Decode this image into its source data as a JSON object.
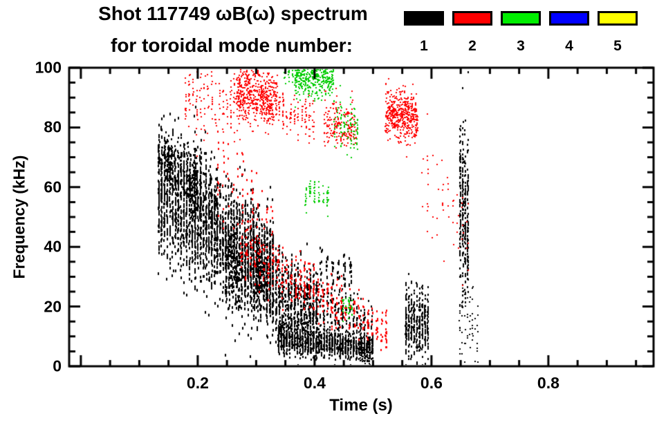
{
  "header": {
    "line1": "Shot 117749 ωB(ω) spectrum",
    "line2": "for toroidal mode number:"
  },
  "legend": {
    "entries": [
      {
        "label": "1",
        "color": "#000000"
      },
      {
        "label": "2",
        "color": "#ff0000"
      },
      {
        "label": "3",
        "color": "#00ee00"
      },
      {
        "label": "4",
        "color": "#0000ff"
      },
      {
        "label": "5",
        "color": "#ffff00"
      }
    ]
  },
  "chart_data": {
    "type": "scatter",
    "title": "Shot 117749 ωB(ω) spectrum for toroidal mode number: 1-5",
    "xlabel": "Time (s)",
    "ylabel": "Frequency (kHz)",
    "xlim": [
      -0.02,
      0.98
    ],
    "ylim": [
      0,
      100
    ],
    "grid": false,
    "legend_position": "top-right",
    "x_major_ticks": [
      0,
      0.2,
      0.4,
      0.6,
      0.8
    ],
    "x_tick_label_values": [
      0.2,
      0.4,
      0.6,
      0.8
    ],
    "x_tick_labels": [
      "0.2",
      "0.4",
      "0.6",
      "0.8"
    ],
    "x_minor_step": 0.05,
    "y_major_ticks": [
      0,
      20,
      40,
      60,
      80,
      100
    ],
    "y_tick_labels": [
      "0",
      "20",
      "40",
      "60",
      "80",
      "100"
    ],
    "y_minor_step": 5,
    "series": [
      {
        "name": "toroidal mode n=1",
        "color": "#000000",
        "clusters": [
          {
            "n": 2300,
            "t": [
              0.13,
              0.33
            ],
            "f": [
              58,
              32
            ],
            "spread": [
              11,
              8
            ],
            "stripes": 42,
            "size": [
              2,
              4
            ]
          },
          {
            "n": 330,
            "t": [
              0.13,
              0.2
            ],
            "f": [
              71,
              62
            ],
            "spread": [
              4,
              5
            ],
            "stripes": 13,
            "size": [
              2,
              3
            ]
          },
          {
            "n": 130,
            "t": [
              0.19,
              0.235
            ],
            "f": [
              64,
              50
            ],
            "spread": [
              9,
              9
            ],
            "stripes": 5,
            "size": [
              2,
              4
            ]
          },
          {
            "n": 850,
            "t": [
              0.245,
              0.405
            ],
            "f": [
              33,
              19
            ],
            "spread": [
              8,
              7
            ],
            "stripes": 30,
            "size": [
              2,
              4
            ]
          },
          {
            "n": 480,
            "t": [
              0.33,
              0.5
            ],
            "f": [
              21,
              12
            ],
            "spread": [
              7,
              5
            ],
            "stripes": 27,
            "size": [
              2,
              3
            ]
          },
          {
            "n": 1150,
            "t": [
              0.335,
              0.5
            ],
            "f": [
              9,
              6
            ],
            "spread": [
              2.5,
              1.6
            ],
            "stripes": 36,
            "size": [
              2,
              3
            ]
          },
          {
            "n": 70,
            "t": [
              0.405,
              0.465
            ],
            "f": [
              33,
              30
            ],
            "spread": [
              4,
              4
            ],
            "stripes": 6,
            "size": [
              2,
              4
            ]
          },
          {
            "n": 60,
            "t": [
              0.475,
              0.495
            ],
            "f": [
              4,
              2
            ],
            "spread": [
              1.5,
              1
            ],
            "stripes": 5,
            "size": [
              2,
              2
            ]
          },
          {
            "n": 430,
            "t": [
              0.553,
              0.595
            ],
            "f": [
              14,
              14
            ],
            "spread": [
              6,
              6
            ],
            "stripes": 9,
            "size": [
              2,
              3
            ]
          },
          {
            "n": 330,
            "t": [
              0.646,
              0.663
            ],
            "f": [
              54,
              52
            ],
            "spread": [
              14,
              14
            ],
            "stripes": 4,
            "size": [
              2,
              3
            ]
          },
          {
            "n": 60,
            "t": [
              0.645,
              0.68
            ],
            "f": [
              16,
              10
            ],
            "spread": [
              7,
              7
            ],
            "stripes": 8,
            "size": [
              2,
              2
            ]
          }
        ]
      },
      {
        "name": "toroidal mode n=2",
        "color": "#ff0000",
        "clusters": [
          {
            "n": 150,
            "t": [
              0.175,
              0.265
            ],
            "f": [
              90,
              88
            ],
            "spread": [
              5,
              6
            ],
            "stripes": 14,
            "size": [
              2,
              2
            ]
          },
          {
            "n": 520,
            "t": [
              0.265,
              0.335
            ],
            "f": [
              92,
              89
            ],
            "spread": [
              5,
              5
            ],
            "stripes": 0,
            "size": [
              2,
              2
            ]
          },
          {
            "n": 110,
            "t": [
              0.335,
              0.4
            ],
            "f": [
              86,
              82
            ],
            "spread": [
              4,
              4
            ],
            "stripes": 10,
            "size": [
              2,
              2
            ]
          },
          {
            "n": 190,
            "t": [
              0.415,
              0.47
            ],
            "f": [
              82,
              80
            ],
            "spread": [
              4,
              4
            ],
            "stripes": 0,
            "size": [
              2,
              2
            ]
          },
          {
            "n": 440,
            "t": [
              0.52,
              0.575
            ],
            "f": [
              85,
              83
            ],
            "spread": [
              4,
              4
            ],
            "stripes": 0,
            "size": [
              2,
              2
            ]
          },
          {
            "n": 430,
            "t": [
              0.27,
              0.525
            ],
            "f": [
              40,
              11
            ],
            "spread": [
              5,
              3
            ],
            "stripes": 33,
            "size": [
              2,
              3
            ]
          },
          {
            "n": 90,
            "t": [
              0.23,
              0.33
            ],
            "f": [
              62,
              48
            ],
            "spread": [
              8,
              8
            ],
            "stripes": 12,
            "size": [
              2,
              3
            ]
          },
          {
            "n": 55,
            "t": [
              0.58,
              0.665
            ],
            "f": [
              60,
              45
            ],
            "spread": [
              12,
              10
            ],
            "stripes": 10,
            "size": [
              2,
              2
            ]
          }
        ]
      },
      {
        "name": "toroidal mode n=3",
        "color": "#00cc00",
        "clusters": [
          {
            "n": 380,
            "t": [
              0.365,
              0.432
            ],
            "f": [
              97,
              96
            ],
            "spread": [
              4,
              3
            ],
            "stripes": 0,
            "size": [
              2,
              2
            ]
          },
          {
            "n": 90,
            "t": [
              0.43,
              0.475
            ],
            "f": [
              82,
              80
            ],
            "spread": [
              5,
              4
            ],
            "stripes": 8,
            "size": [
              2,
              2
            ]
          },
          {
            "n": 70,
            "t": [
              0.38,
              0.425
            ],
            "f": [
              58,
              57
            ],
            "spread": [
              2.5,
              2.5
            ],
            "stripes": 6,
            "size": [
              2,
              2
            ]
          },
          {
            "n": 35,
            "t": [
              0.445,
              0.465
            ],
            "f": [
              20,
              20
            ],
            "spread": [
              2.5,
              2.5
            ],
            "stripes": 4,
            "size": [
              2,
              2
            ]
          },
          {
            "n": 20,
            "t": [
              0.345,
              0.365
            ],
            "f": [
              99,
              98
            ],
            "spread": [
              1.5,
              1.5
            ],
            "stripes": 3,
            "size": [
              2,
              2
            ]
          }
        ]
      },
      {
        "name": "toroidal mode n=4",
        "color": "#0000ff",
        "clusters": []
      },
      {
        "name": "toroidal mode n=5",
        "color": "#ffff00",
        "clusters": []
      }
    ]
  }
}
